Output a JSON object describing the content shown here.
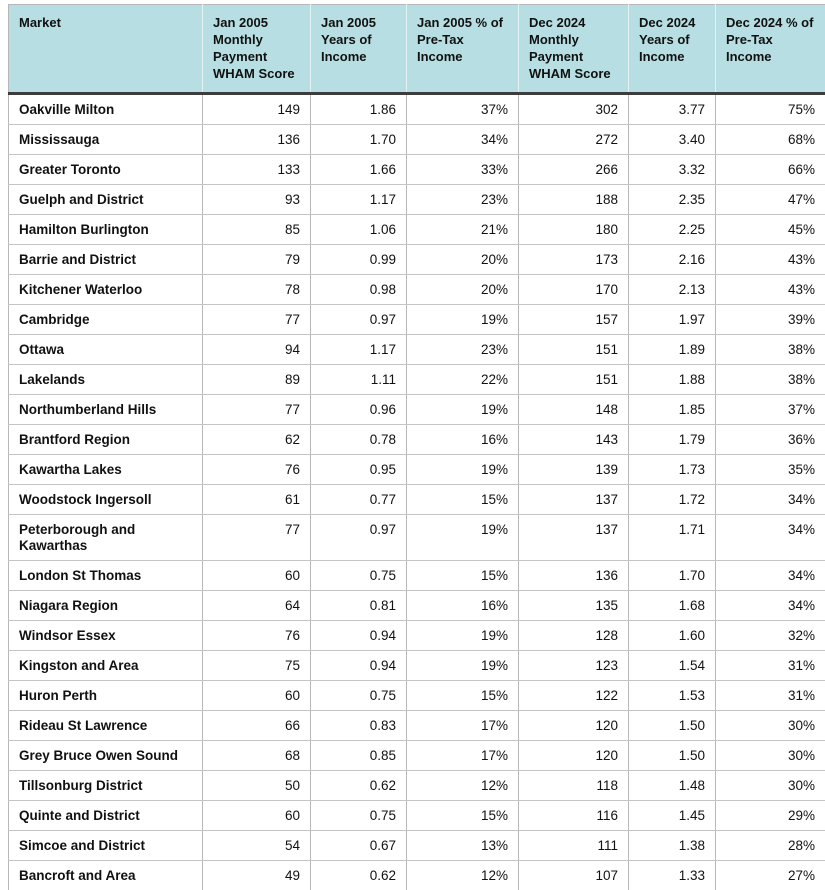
{
  "colors": {
    "page_background": "#ffffff",
    "header_background": "#b7dfe3",
    "header_text": "#111111",
    "body_text": "#111111",
    "grid_line": "#b7b7b7",
    "row_divider": "#c4c4c4",
    "header_cell_separator": "#e3f1f3",
    "dark_rule": "#3d3d3d"
  },
  "chart_data": {
    "type": "table",
    "title": "",
    "columns": [
      "Market",
      "Jan 2005 Monthly Payment WHAM Score",
      "Jan 2005 Years of Income",
      "Jan 2005 % of Pre-Tax Income",
      "Dec 2024 Monthly Payment WHAM Score",
      "Dec 2024 Years of Income",
      "Dec 2024 % of Pre-Tax Income"
    ],
    "column_alignments": [
      "left",
      "right",
      "right",
      "right",
      "right",
      "right",
      "right"
    ],
    "rows": [
      [
        "Oakville Milton",
        "149",
        "1.86",
        "37%",
        "302",
        "3.77",
        "75%"
      ],
      [
        "Mississauga",
        "136",
        "1.70",
        "34%",
        "272",
        "3.40",
        "68%"
      ],
      [
        "Greater Toronto",
        "133",
        "1.66",
        "33%",
        "266",
        "3.32",
        "66%"
      ],
      [
        "Guelph and District",
        "93",
        "1.17",
        "23%",
        "188",
        "2.35",
        "47%"
      ],
      [
        "Hamilton Burlington",
        "85",
        "1.06",
        "21%",
        "180",
        "2.25",
        "45%"
      ],
      [
        "Barrie and District",
        "79",
        "0.99",
        "20%",
        "173",
        "2.16",
        "43%"
      ],
      [
        "Kitchener Waterloo",
        "78",
        "0.98",
        "20%",
        "170",
        "2.13",
        "43%"
      ],
      [
        "Cambridge",
        "77",
        "0.97",
        "19%",
        "157",
        "1.97",
        "39%"
      ],
      [
        "Ottawa",
        "94",
        "1.17",
        "23%",
        "151",
        "1.89",
        "38%"
      ],
      [
        "Lakelands",
        "89",
        "1.11",
        "22%",
        "151",
        "1.88",
        "38%"
      ],
      [
        "Northumberland Hills",
        "77",
        "0.96",
        "19%",
        "148",
        "1.85",
        "37%"
      ],
      [
        "Brantford Region",
        "62",
        "0.78",
        "16%",
        "143",
        "1.79",
        "36%"
      ],
      [
        "Kawartha Lakes",
        "76",
        "0.95",
        "19%",
        "139",
        "1.73",
        "35%"
      ],
      [
        "Woodstock Ingersoll",
        "61",
        "0.77",
        "15%",
        "137",
        "1.72",
        "34%"
      ],
      [
        "Peterborough and Kawarthas",
        "77",
        "0.97",
        "19%",
        "137",
        "1.71",
        "34%"
      ],
      [
        "London St Thomas",
        "60",
        "0.75",
        "15%",
        "136",
        "1.70",
        "34%"
      ],
      [
        "Niagara Region",
        "64",
        "0.81",
        "16%",
        "135",
        "1.68",
        "34%"
      ],
      [
        "Windsor Essex",
        "76",
        "0.94",
        "19%",
        "128",
        "1.60",
        "32%"
      ],
      [
        "Kingston and Area",
        "75",
        "0.94",
        "19%",
        "123",
        "1.54",
        "31%"
      ],
      [
        "Huron Perth",
        "60",
        "0.75",
        "15%",
        "122",
        "1.53",
        "31%"
      ],
      [
        "Rideau St Lawrence",
        "66",
        "0.83",
        "17%",
        "120",
        "1.50",
        "30%"
      ],
      [
        "Grey Bruce Owen Sound",
        "68",
        "0.85",
        "17%",
        "120",
        "1.50",
        "30%"
      ],
      [
        "Tillsonburg District",
        "50",
        "0.62",
        "12%",
        "118",
        "1.48",
        "30%"
      ],
      [
        "Quinte and District",
        "60",
        "0.75",
        "15%",
        "116",
        "1.45",
        "29%"
      ],
      [
        "Simcoe and District",
        "54",
        "0.67",
        "13%",
        "111",
        "1.38",
        "28%"
      ],
      [
        "Bancroft and Area",
        "49",
        "0.62",
        "12%",
        "107",
        "1.33",
        "27%"
      ]
    ]
  }
}
